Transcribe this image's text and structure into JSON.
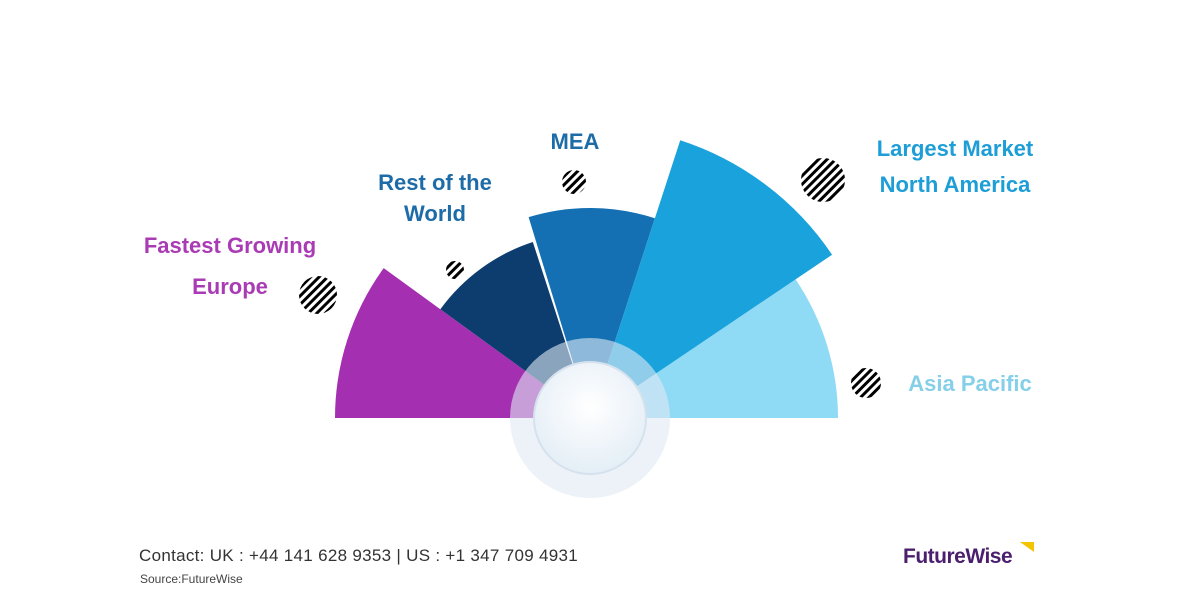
{
  "regions": [
    {
      "name": "Europe",
      "tag": "Fastest Growing",
      "color": "#a42fb0"
    },
    {
      "name": "Rest of the World",
      "tag": "",
      "color": "#0c3d6e"
    },
    {
      "name": "MEA",
      "tag": "",
      "color": "#1470b3"
    },
    {
      "name": "North America",
      "tag": "Largest Market",
      "color": "#1aa2dc"
    },
    {
      "name": "Asia Pacific",
      "tag": "",
      "color": "#8fdaf5"
    }
  ],
  "labels": {
    "europe_line1": "Fastest Growing",
    "europe_line2": "Europe",
    "row_line1": "Rest of the",
    "row_line2": "World",
    "mea": "MEA",
    "na_line1": "Largest Market",
    "na_line2": "North America",
    "apac": "Asia Pacific"
  },
  "footer": {
    "contact": "Contact:  UK : +44 141 628 9353  |  US :  +1 347 709 4931",
    "source": "Source:FutureWise",
    "logo": "FutureWise"
  }
}
